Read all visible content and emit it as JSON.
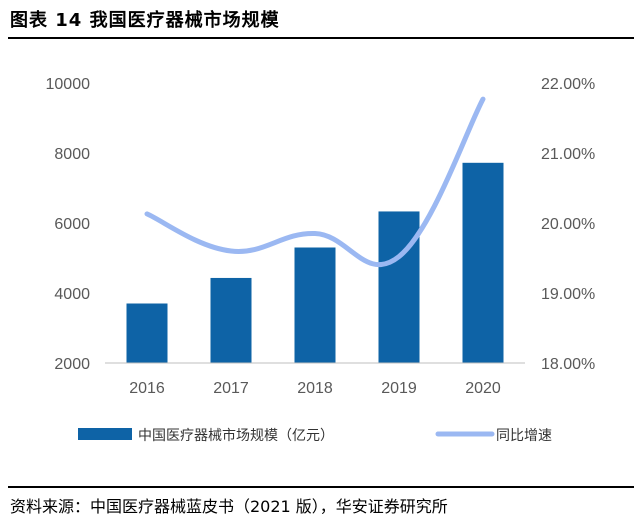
{
  "header": {
    "title": "图表 14 我国医疗器械市场规模"
  },
  "footer": {
    "source": "资料来源：中国医疗器械蓝皮书（2021 版），华安证券研究所"
  },
  "colors": {
    "bar": "#0E63A6",
    "line": "#9BB8F2",
    "axis": "#BFBFBF"
  },
  "chart_data": {
    "type": "bar",
    "categories": [
      "2016",
      "2017",
      "2018",
      "2019",
      "2020"
    ],
    "series": [
      {
        "name": "中国医疗器械市场规模（亿元）",
        "type": "bar",
        "axis": "left",
        "values": [
          3700,
          4430,
          5300,
          6330,
          7720
        ]
      },
      {
        "name": "同比增速",
        "type": "line",
        "axis": "right",
        "values": [
          0.2013,
          0.196,
          0.1985,
          0.1952,
          0.2177
        ]
      }
    ],
    "y_left": {
      "min": 2000,
      "max": 10000,
      "ticks": [
        "2000",
        "4000",
        "6000",
        "8000",
        "10000"
      ]
    },
    "y_right": {
      "min": 0.18,
      "max": 0.22,
      "ticks": [
        "18.00%",
        "19.00%",
        "20.00%",
        "21.00%",
        "22.00%"
      ]
    },
    "legend": "bottom",
    "grid": false
  }
}
